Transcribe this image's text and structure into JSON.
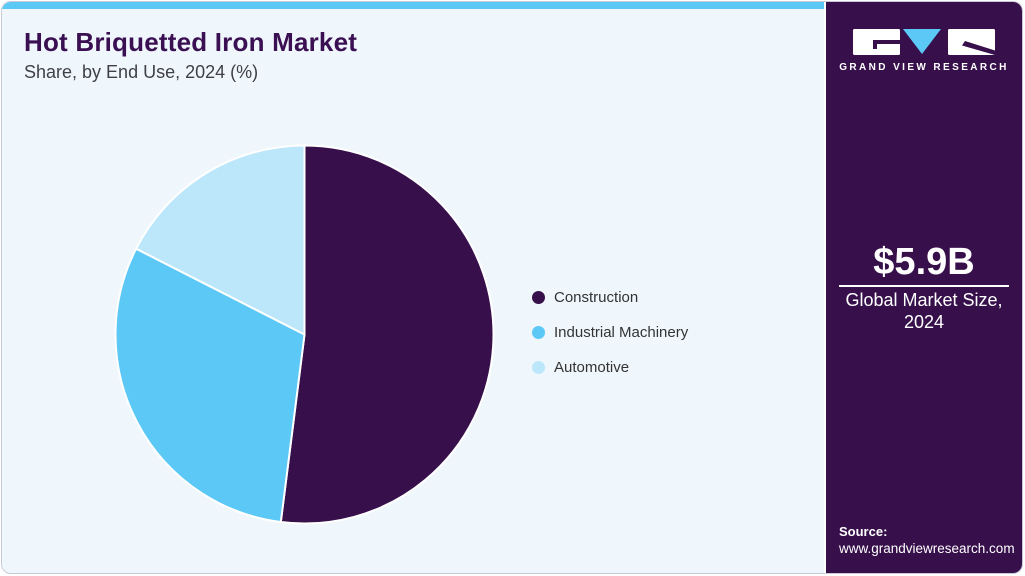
{
  "header": {
    "title": "Hot Briquetted Iron Market",
    "subtitle": "Share, by End Use, 2024 (%)"
  },
  "chart_data": {
    "type": "pie",
    "title": "Hot Briquetted Iron Market Share, by End Use, 2024 (%)",
    "categories": [
      "Construction",
      "Industrial Machinery",
      "Automotive"
    ],
    "values": [
      52,
      30.5,
      17.5
    ],
    "unit": "%",
    "colors": [
      "#37104B",
      "#5BC8F5",
      "#BCE7FB"
    ],
    "start_angle_deg": 0,
    "direction": "clockwise",
    "legend_position": "right",
    "data_labels_shown": false
  },
  "sidebar": {
    "logo_text": "GRAND VIEW RESEARCH",
    "market_size_value": "$5.9B",
    "market_size_label_line1": "Global Market Size,",
    "market_size_label_line2": "2024",
    "source_label": "Source:",
    "source_url": "www.grandviewresearch.com"
  },
  "theme": {
    "accent_bar_color": "#5BC8F5",
    "panel_background": "#F0F7FC",
    "sidebar_background": "#37104B",
    "title_color": "#3A1053",
    "body_text_color": "#333333",
    "card_border_color": "#C7C9D6",
    "slice_separator_color": "#FFFFFF"
  }
}
